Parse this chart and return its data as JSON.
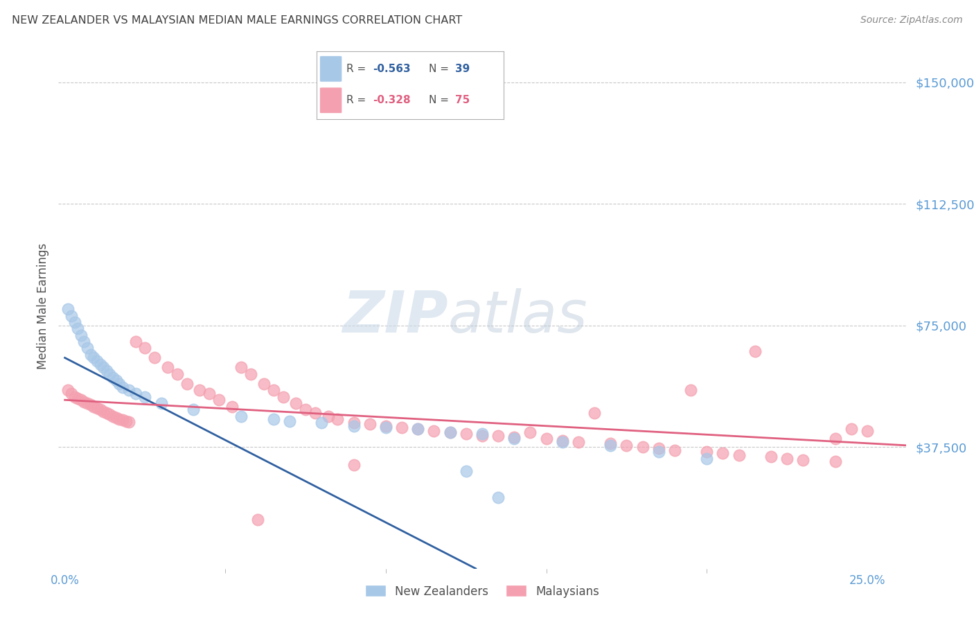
{
  "title": "NEW ZEALANDER VS MALAYSIAN MEDIAN MALE EARNINGS CORRELATION CHART",
  "source": "Source: ZipAtlas.com",
  "ylabel": "Median Male Earnings",
  "ytick_values": [
    37500,
    75000,
    112500,
    150000
  ],
  "ylim": [
    0,
    162000
  ],
  "xlim": [
    -0.002,
    0.262
  ],
  "watermark_zip": "ZIP",
  "watermark_atlas": "atlas",
  "legend_r_nz": "-0.563",
  "legend_n_nz": "39",
  "legend_r_my": "-0.328",
  "legend_n_my": "75",
  "legend_label_nz": "New Zealanders",
  "legend_label_my": "Malaysians",
  "nz_color": "#a8c8e8",
  "my_color": "#f4a0b0",
  "nz_line_color": "#3060a0",
  "my_line_color": "#e06080",
  "background_color": "#ffffff",
  "grid_color": "#c8c8c8",
  "title_color": "#404040",
  "ytick_color": "#5b9bd5",
  "xtick_color": "#5b9bd5",
  "nz_x": [
    0.001,
    0.002,
    0.003,
    0.004,
    0.005,
    0.006,
    0.007,
    0.008,
    0.009,
    0.01,
    0.011,
    0.012,
    0.013,
    0.014,
    0.015,
    0.016,
    0.017,
    0.018,
    0.02,
    0.022,
    0.025,
    0.03,
    0.04,
    0.055,
    0.065,
    0.07,
    0.08,
    0.09,
    0.1,
    0.11,
    0.12,
    0.13,
    0.14,
    0.155,
    0.17,
    0.185,
    0.2,
    0.125,
    0.135
  ],
  "nz_y": [
    80000,
    78000,
    76000,
    74000,
    72000,
    70000,
    68000,
    66000,
    65000,
    64000,
    63000,
    62000,
    61000,
    60000,
    59000,
    58000,
    57000,
    56000,
    55000,
    54000,
    53000,
    51000,
    49000,
    47000,
    46000,
    45500,
    45000,
    44000,
    43500,
    43000,
    42000,
    41500,
    40000,
    39000,
    38000,
    36000,
    34000,
    30000,
    22000
  ],
  "my_x": [
    0.001,
    0.002,
    0.003,
    0.004,
    0.005,
    0.006,
    0.007,
    0.008,
    0.009,
    0.01,
    0.011,
    0.012,
    0.013,
    0.014,
    0.015,
    0.016,
    0.017,
    0.018,
    0.019,
    0.02,
    0.022,
    0.025,
    0.028,
    0.032,
    0.035,
    0.038,
    0.042,
    0.045,
    0.048,
    0.052,
    0.055,
    0.058,
    0.062,
    0.065,
    0.068,
    0.072,
    0.075,
    0.078,
    0.082,
    0.085,
    0.09,
    0.095,
    0.1,
    0.105,
    0.11,
    0.115,
    0.12,
    0.125,
    0.13,
    0.14,
    0.15,
    0.155,
    0.16,
    0.17,
    0.175,
    0.18,
    0.185,
    0.19,
    0.2,
    0.205,
    0.21,
    0.22,
    0.225,
    0.23,
    0.24,
    0.215,
    0.195,
    0.165,
    0.145,
    0.135,
    0.245,
    0.25,
    0.24,
    0.09,
    0.06
  ],
  "my_y": [
    55000,
    54000,
    53000,
    52500,
    52000,
    51500,
    51000,
    50500,
    50000,
    49500,
    49000,
    48500,
    48000,
    47500,
    47000,
    46500,
    46000,
    45800,
    45500,
    45200,
    70000,
    68000,
    65000,
    62000,
    60000,
    57000,
    55000,
    54000,
    52000,
    50000,
    62000,
    60000,
    57000,
    55000,
    53000,
    51000,
    49000,
    48000,
    47000,
    46000,
    45000,
    44500,
    44000,
    43500,
    43000,
    42500,
    42000,
    41500,
    41000,
    40500,
    40000,
    39500,
    39000,
    38500,
    38000,
    37500,
    37000,
    36500,
    36000,
    35500,
    35000,
    34500,
    34000,
    33500,
    33000,
    67000,
    55000,
    48000,
    42000,
    41000,
    43000,
    42500,
    40000,
    32000,
    15000
  ],
  "nz_line_x0": 0.0,
  "nz_line_y0": 65000,
  "nz_line_x1": 0.128,
  "nz_line_y1": 0,
  "my_line_x0": 0.0,
  "my_line_y0": 52000,
  "my_line_x1": 0.262,
  "my_line_y1": 38000
}
